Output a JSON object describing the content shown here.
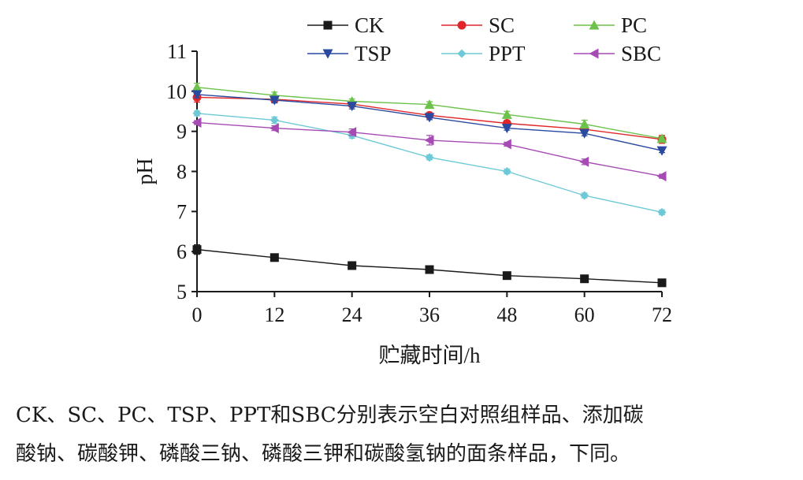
{
  "chart_data": {
    "type": "line",
    "xlabel": "贮藏时间/h",
    "ylabel": "pH",
    "x": [
      0,
      12,
      24,
      36,
      48,
      60,
      72
    ],
    "xlim": [
      0,
      72
    ],
    "ylim": [
      5,
      11
    ],
    "xticks": [
      "0",
      "12",
      "24",
      "36",
      "48",
      "60",
      "72"
    ],
    "yticks": [
      "5",
      "6",
      "7",
      "8",
      "9",
      "10",
      "11"
    ],
    "grid": false,
    "error_bars": true,
    "legend_position": "top",
    "series": [
      {
        "name": "CK",
        "color": "#1a1a1a",
        "marker": "square",
        "values": [
          6.05,
          5.85,
          5.65,
          5.55,
          5.4,
          5.32,
          5.22
        ],
        "errors": [
          0.12,
          0.06,
          0.08,
          0.05,
          0.07,
          0.06,
          0.05
        ]
      },
      {
        "name": "SC",
        "color": "#e0262a",
        "marker": "circle",
        "values": [
          9.85,
          9.8,
          9.68,
          9.4,
          9.2,
          9.05,
          8.8
        ],
        "errors": [
          0.12,
          0.08,
          0.07,
          0.06,
          0.06,
          0.07,
          0.1
        ]
      },
      {
        "name": "PC",
        "color": "#6cc24a",
        "marker": "triangle-up",
        "values": [
          10.1,
          9.9,
          9.75,
          9.67,
          9.42,
          9.18,
          8.82
        ],
        "errors": [
          0.1,
          0.08,
          0.06,
          0.07,
          0.08,
          0.1,
          0.06
        ]
      },
      {
        "name": "TSP",
        "color": "#2a4aa0",
        "marker": "triangle-down",
        "values": [
          9.92,
          9.78,
          9.63,
          9.35,
          9.08,
          8.95,
          8.52
        ],
        "errors": [
          0.08,
          0.07,
          0.07,
          0.06,
          0.05,
          0.06,
          0.05
        ]
      },
      {
        "name": "PPT",
        "color": "#6ec9d6",
        "marker": "diamond",
        "values": [
          9.45,
          9.28,
          8.9,
          8.35,
          8.0,
          7.4,
          6.98
        ],
        "errors": [
          0.06,
          0.08,
          0.07,
          0.06,
          0.06,
          0.06,
          0.06
        ]
      },
      {
        "name": "SBC",
        "color": "#a64ab4",
        "marker": "triangle-left",
        "values": [
          9.22,
          9.08,
          8.98,
          8.78,
          8.68,
          8.24,
          7.88
        ],
        "errors": [
          0.05,
          0.06,
          0.08,
          0.12,
          0.05,
          0.07,
          0.05
        ]
      }
    ]
  },
  "caption": {
    "line1": "CK、SC、PC、TSP、PPT和SBC分别表示空白对照组样品、添加碳",
    "line2": "酸钠、碳酸钾、磷酸三钠、磷酸三钾和碳酸氢钠的面条样品，下同。"
  }
}
